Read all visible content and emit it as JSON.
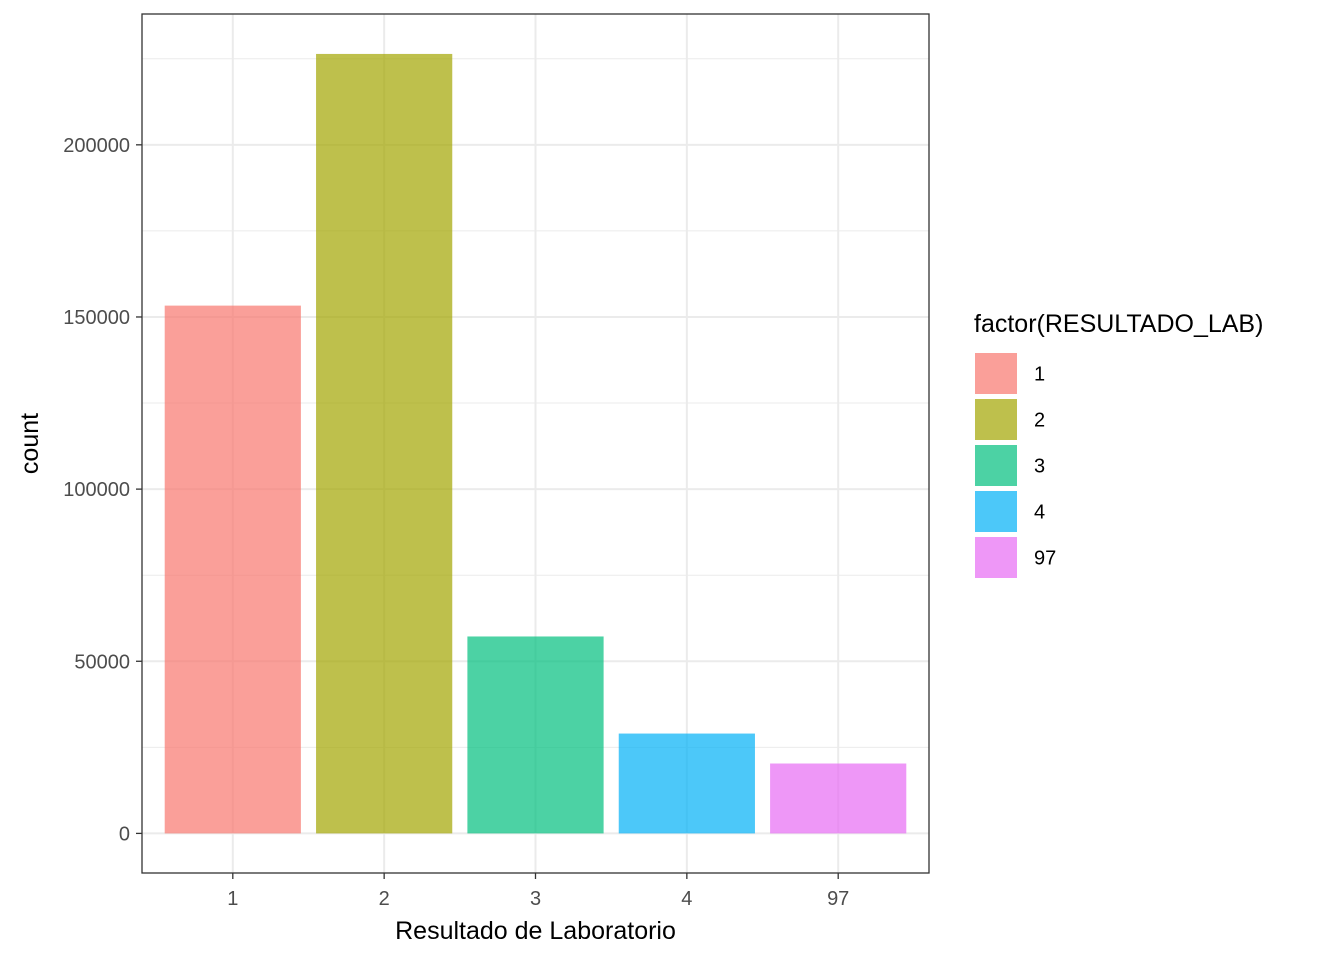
{
  "chart_data": {
    "type": "bar",
    "categories": [
      "1",
      "2",
      "3",
      "4",
      "97"
    ],
    "values": [
      153300,
      226400,
      57200,
      29000,
      20300
    ],
    "colors": [
      "#F8766D",
      "#A3A500",
      "#00BF7D",
      "#00B0F6",
      "#E76BF3"
    ],
    "xlabel": "Resultado de Laboratorio",
    "ylabel": "count",
    "ylim": [
      -11500,
      238000
    ],
    "yticks": [
      0,
      50000,
      100000,
      150000,
      200000
    ],
    "yticks_minor": [
      25000,
      75000,
      125000,
      175000,
      225000
    ],
    "grid": true,
    "bar_opacity": 0.7,
    "legend": {
      "title": "factor(RESULTADO_LAB)",
      "placement": "right",
      "entries": [
        "1",
        "2",
        "3",
        "4",
        "97"
      ]
    }
  }
}
